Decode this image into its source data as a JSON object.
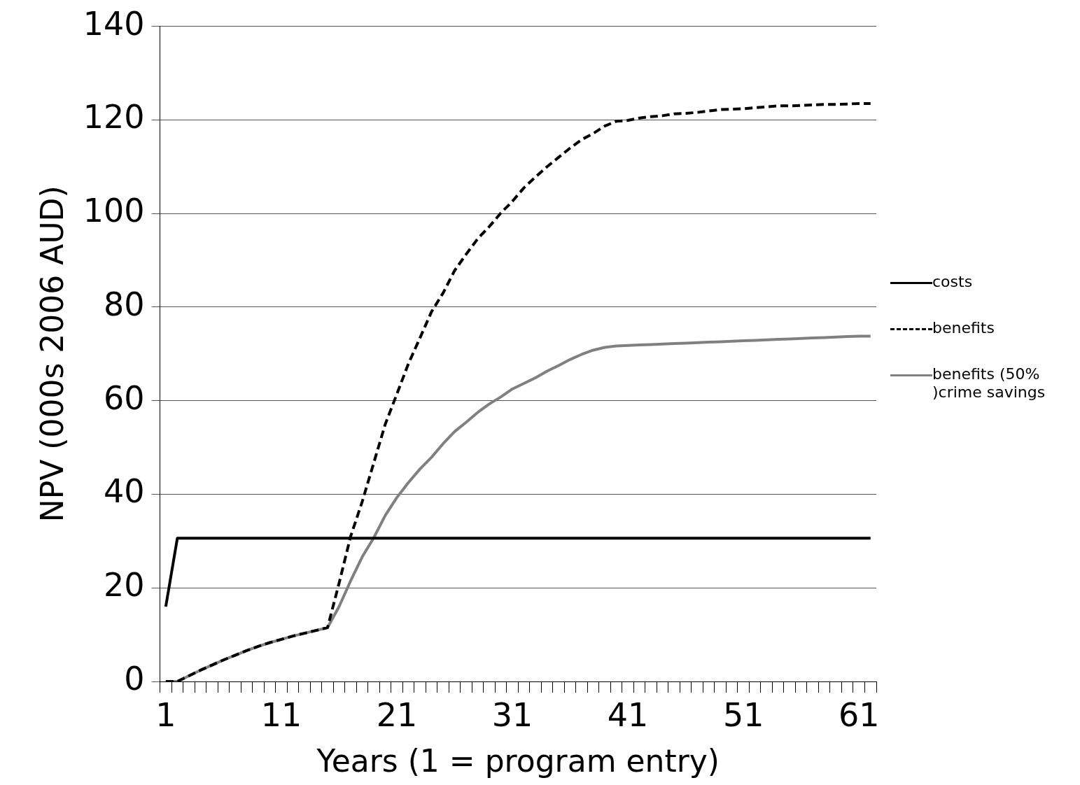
{
  "chart_data": {
    "type": "line",
    "xlabel": "Years (1 = program entry)",
    "ylabel": "NPV (000s 2006 AUD)",
    "categories": [
      "1",
      null,
      null,
      null,
      null,
      null,
      null,
      null,
      null,
      null,
      "11",
      null,
      null,
      null,
      null,
      null,
      null,
      null,
      null,
      null,
      "21",
      null,
      null,
      null,
      null,
      null,
      null,
      null,
      null,
      null,
      "31",
      null,
      null,
      null,
      null,
      null,
      null,
      null,
      null,
      null,
      "41",
      null,
      null,
      null,
      null,
      null,
      null,
      null,
      null,
      null,
      "51",
      null,
      null,
      null,
      null,
      null,
      null,
      null,
      null,
      null,
      "61",
      null
    ],
    "series": [
      {
        "name": "costs",
        "color": "#000000",
        "line_style": "solid",
        "values": [
          16,
          30.6,
          30.6,
          30.6,
          30.6,
          30.6,
          30.6,
          30.6,
          30.6,
          30.6,
          30.6,
          30.6,
          30.6,
          30.6,
          30.6,
          30.6,
          30.6,
          30.6,
          30.6,
          30.6,
          30.6,
          30.6,
          30.6,
          30.6,
          30.6,
          30.6,
          30.6,
          30.6,
          30.6,
          30.6,
          30.6,
          30.6,
          30.6,
          30.6,
          30.6,
          30.6,
          30.6,
          30.6,
          30.6,
          30.6,
          30.6,
          30.6,
          30.6,
          30.6,
          30.6,
          30.6,
          30.6,
          30.6,
          30.6,
          30.6,
          30.6,
          30.6,
          30.6,
          30.6,
          30.6,
          30.6,
          30.6,
          30.6,
          30.6,
          30.6,
          30.6,
          30.6
        ]
      },
      {
        "name": "benefits",
        "color": "#000000",
        "line_style": "dashed",
        "values": [
          0,
          0,
          1.2,
          2.4,
          3.5,
          4.6,
          5.6,
          6.6,
          7.5,
          8.3,
          9.0,
          9.7,
          10.3,
          10.9,
          11.5,
          21,
          31,
          38.4,
          46.7,
          55,
          61.4,
          67.9,
          73.4,
          79,
          83,
          87.8,
          91.3,
          94.6,
          97.2,
          100.1,
          102.6,
          105.5,
          107.8,
          110,
          112,
          114,
          115.8,
          117.1,
          118.7,
          119.7,
          119.9,
          120.4,
          120.7,
          120.9,
          121.3,
          121.4,
          121.6,
          121.9,
          122.2,
          122.3,
          122.4,
          122.6,
          122.8,
          123,
          123,
          123.1,
          123.2,
          123.3,
          123.3,
          123.4,
          123.5,
          123.5
        ]
      },
      {
        "name": "benefits (50% )crime savings",
        "color": "#808080",
        "line_style": "solid",
        "values": [
          0,
          0,
          1.2,
          2.4,
          3.5,
          4.6,
          5.6,
          6.6,
          7.5,
          8.3,
          9.0,
          9.7,
          10.3,
          10.9,
          11.5,
          16,
          21.5,
          26.6,
          30.7,
          35.5,
          39.3,
          42.5,
          45.4,
          47.9,
          50.8,
          53.4,
          55.4,
          57.5,
          59.3,
          60.8,
          62.5,
          63.7,
          64.9,
          66.3,
          67.5,
          68.8,
          69.9,
          70.8,
          71.4,
          71.7,
          71.8,
          71.9,
          72.0,
          72.1,
          72.2,
          72.3,
          72.4,
          72.5,
          72.6,
          72.7,
          72.8,
          72.9,
          73.0,
          73.1,
          73.2,
          73.3,
          73.4,
          73.5,
          73.6,
          73.7,
          73.8,
          73.8
        ]
      }
    ],
    "ylim": [
      0,
      140
    ],
    "yticks": [
      0,
      20,
      40,
      60,
      80,
      100,
      120,
      140
    ],
    "grid": "y",
    "legend": "right",
    "marker": "none"
  }
}
